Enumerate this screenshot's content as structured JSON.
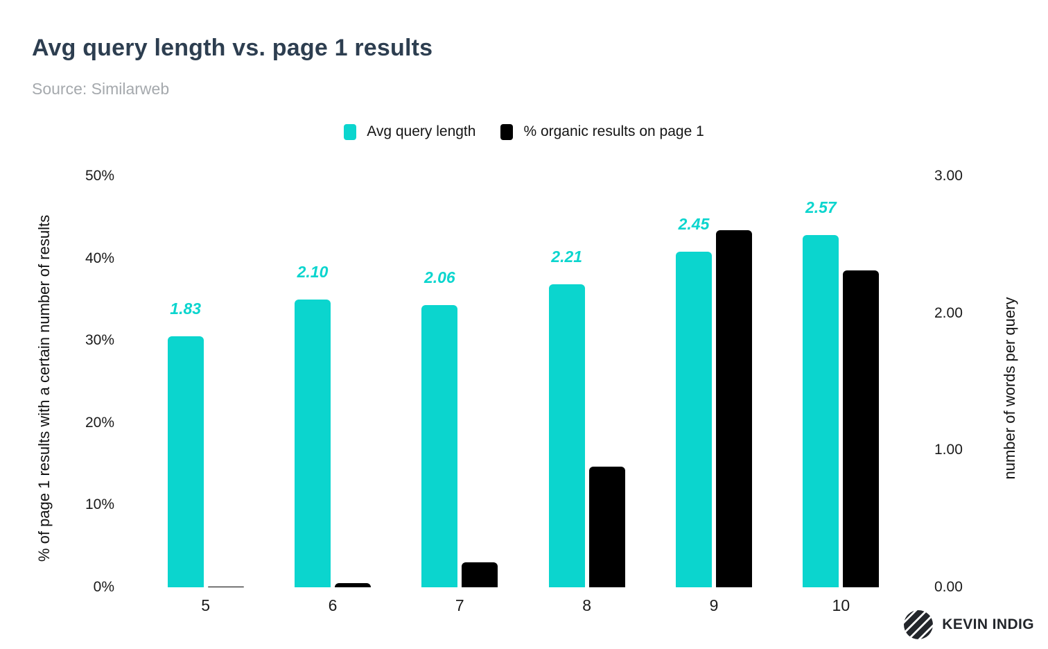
{
  "header": {
    "title": "Avg query length vs. page 1 results",
    "subtitle": "Source: Similarweb"
  },
  "chart_data": {
    "type": "bar",
    "title": "Avg query length vs. page 1 results",
    "subtitle": "Source: Similarweb",
    "categories": [
      "5",
      "6",
      "7",
      "8",
      "9",
      "10"
    ],
    "series": [
      {
        "name": "Avg query length",
        "axis": "right",
        "color": "#0bd5ce",
        "values": [
          1.83,
          2.1,
          2.06,
          2.21,
          2.45,
          2.57
        ],
        "data_labels": [
          "1.83",
          "2.10",
          "2.06",
          "2.21",
          "2.45",
          "2.57"
        ]
      },
      {
        "name": "% organic results on page 1",
        "axis": "left",
        "color": "#000000",
        "values": [
          0.1,
          0.5,
          3.0,
          14.7,
          43.4,
          38.5
        ],
        "data_labels": []
      }
    ],
    "left_axis": {
      "label": "% of page 1 results with a certain number of results",
      "ticks": [
        "0%",
        "10%",
        "20%",
        "30%",
        "40%",
        "50%"
      ],
      "min": 0,
      "max": 50
    },
    "right_axis": {
      "label": "number of words per query",
      "ticks": [
        "0.00",
        "1.00",
        "2.00",
        "3.00"
      ],
      "min": 0,
      "max": 3
    },
    "grid": false,
    "legend_position": "top-center"
  },
  "colors": {
    "accent_teal": "#0bd5ce",
    "series_black": "#000000",
    "title": "#2d3e50",
    "subtitle": "#a5a9ad"
  },
  "footer": {
    "brand": "KEVIN INDIG"
  }
}
